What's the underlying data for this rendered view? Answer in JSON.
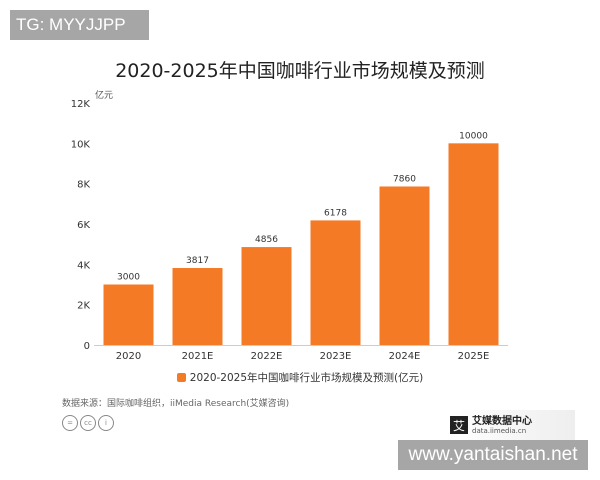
{
  "watermark_top": "TG: MYYJJPP",
  "watermark_bottom": "www.yantaishan.net",
  "source": "数据来源：国际咖啡组织，iiMedia Research(艾媒咨询)",
  "logo": {
    "mark": "艾",
    "name": "艾媒数据中心",
    "url": "data.iimedia.cn"
  },
  "license_icons": [
    "=",
    "cc",
    "i"
  ],
  "chart_data": {
    "type": "bar",
    "title": "2020-2025年中国咖啡行业市场规模及预测",
    "unit_label": "亿元",
    "categories": [
      "2020",
      "2021E",
      "2022E",
      "2023E",
      "2024E",
      "2025E"
    ],
    "series": [
      {
        "name": "2020-2025年中国咖啡行业市场规模及预测(亿元)",
        "values": [
          3000,
          3817,
          4856,
          6178,
          7860,
          10000
        ],
        "color": "#f57a25"
      }
    ],
    "ylim": [
      0,
      12000
    ],
    "yticks": [
      {
        "v": 0,
        "label": "0"
      },
      {
        "v": 2000,
        "label": "2K"
      },
      {
        "v": 4000,
        "label": "4K"
      },
      {
        "v": 6000,
        "label": "6K"
      },
      {
        "v": 8000,
        "label": "8K"
      },
      {
        "v": 10000,
        "label": "10K"
      },
      {
        "v": 12000,
        "label": "12K"
      }
    ],
    "grid": false,
    "legend": "bottom"
  }
}
